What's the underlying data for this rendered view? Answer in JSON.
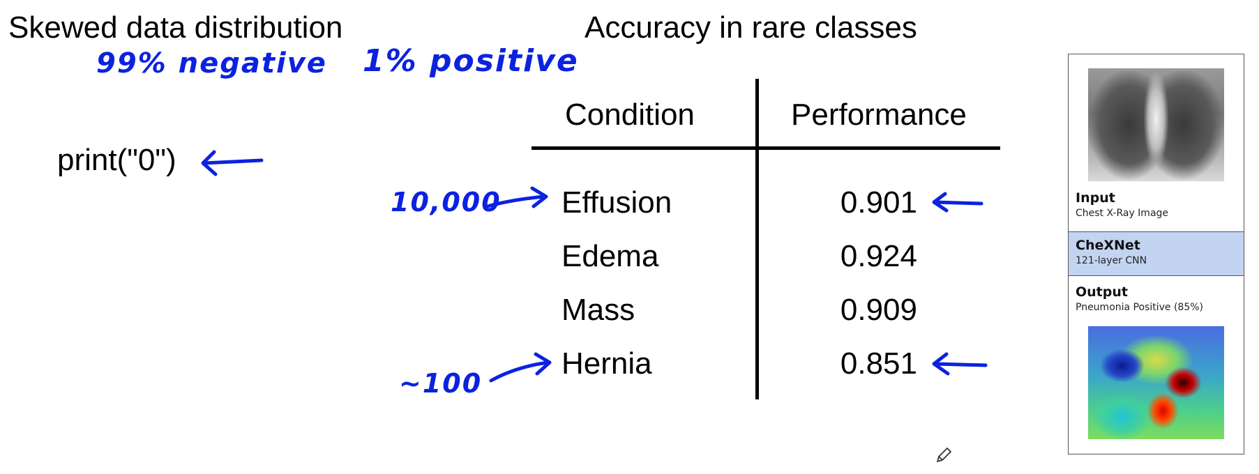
{
  "left": {
    "title": "Skewed data distribution",
    "code": "print(\"0\")"
  },
  "right": {
    "title": "Accuracy in rare classes"
  },
  "annotations": {
    "negative": "99% negative",
    "positive": "1% positive",
    "count_effusion": "10,000",
    "count_hernia": "~100"
  },
  "table": {
    "headers": [
      "Condition",
      "Performance"
    ],
    "rows": [
      {
        "condition": "Effusion",
        "performance": "0.901"
      },
      {
        "condition": "Edema",
        "performance": "0.924"
      },
      {
        "condition": "Mass",
        "performance": "0.909"
      },
      {
        "condition": "Hernia",
        "performance": "0.851"
      }
    ]
  },
  "panel": {
    "input_title": "Input",
    "input_sub": "Chest X-Ray Image",
    "model_title": "CheXNet",
    "model_sub": "121-layer CNN",
    "output_title": "Output",
    "output_sub": "Pneumonia Positive (85%)",
    "highlight_color": "#c3d4f2"
  },
  "icons": {
    "pencil": "pencil-icon",
    "arrow": "hand-drawn-arrow-icon"
  },
  "colors": {
    "ink": "#0b22e0"
  }
}
